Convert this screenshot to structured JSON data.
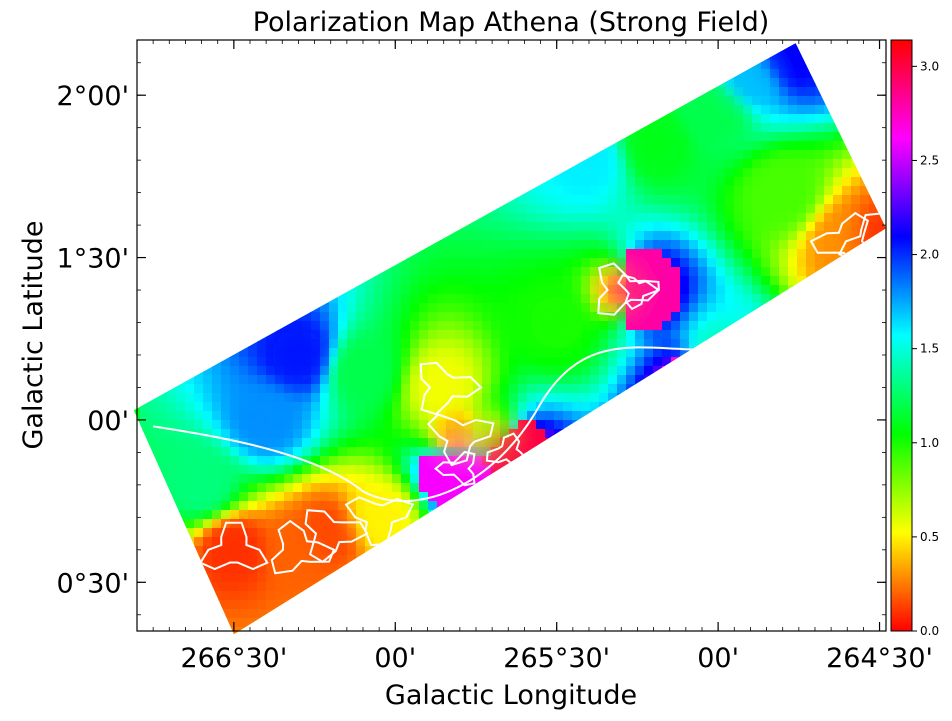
{
  "chart_data": {
    "type": "heatmap",
    "title": "Polarization Map Athena (Strong Field)",
    "xlabel": "Galactic Longitude",
    "ylabel": "Galactic Latitude",
    "x_ticks": [
      "266°30'",
      "00'",
      "265°30'",
      "00'",
      "264°30'"
    ],
    "y_ticks": [
      "2°00'",
      "1°30'",
      "00'",
      "0°30'"
    ],
    "x_tick_values_deg": [
      266.5,
      266.0,
      265.5,
      265.0,
      264.5
    ],
    "y_tick_values_deg": [
      2.0,
      1.5,
      1.0,
      0.5
    ],
    "xlim_deg": [
      266.8,
      264.48
    ],
    "ylim_deg": [
      0.35,
      2.17
    ],
    "colormap": "hsv",
    "colorbar": {
      "range": [
        0.0,
        3.14
      ],
      "ticks": [
        "0.0",
        "0.5",
        "1.0",
        "1.5",
        "2.0",
        "2.5",
        "3.0"
      ],
      "tick_values": [
        0.0,
        0.5,
        1.0,
        1.5,
        2.0,
        2.5,
        3.0
      ],
      "placement": "right"
    },
    "footprint_corners_deg": [
      {
        "lon": 266.81,
        "lat": 1.03
      },
      {
        "lon": 264.76,
        "lat": 2.16
      },
      {
        "lon": 264.48,
        "lat": 1.59
      },
      {
        "lon": 266.5,
        "lat": 0.34
      }
    ],
    "field_values": [
      {
        "lon": 266.5,
        "lat": 0.6,
        "value": 0.1
      },
      {
        "lon": 266.3,
        "lat": 0.6,
        "value": 0.2
      },
      {
        "lon": 266.2,
        "lat": 0.65,
        "value": 0.15
      },
      {
        "lon": 266.05,
        "lat": 0.7,
        "value": 0.5
      },
      {
        "lon": 266.6,
        "lat": 0.8,
        "value": 1.3
      },
      {
        "lon": 266.4,
        "lat": 1.0,
        "value": 1.8
      },
      {
        "lon": 266.3,
        "lat": 1.2,
        "value": 2.05
      },
      {
        "lon": 266.1,
        "lat": 1.15,
        "value": 1.2
      },
      {
        "lon": 265.85,
        "lat": 1.1,
        "value": 0.55
      },
      {
        "lon": 265.8,
        "lat": 0.95,
        "value": 0.35
      },
      {
        "lon": 265.7,
        "lat": 0.95,
        "value": 0.7
      },
      {
        "lon": 265.8,
        "lat": 0.85,
        "value": 2.6
      },
      {
        "lon": 265.65,
        "lat": 0.9,
        "value": 3.0
      },
      {
        "lon": 265.5,
        "lat": 1.3,
        "value": 1.0
      },
      {
        "lon": 265.3,
        "lat": 1.4,
        "value": 0.3
      },
      {
        "lon": 265.25,
        "lat": 1.4,
        "value": 2.8
      },
      {
        "lon": 265.0,
        "lat": 1.2,
        "value": 1.45
      },
      {
        "lon": 265.05,
        "lat": 1.1,
        "value": 2.7
      },
      {
        "lon": 265.4,
        "lat": 1.8,
        "value": 1.6
      },
      {
        "lon": 265.2,
        "lat": 1.85,
        "value": 1.1
      },
      {
        "lon": 265.0,
        "lat": 1.95,
        "value": 1.2
      },
      {
        "lon": 264.9,
        "lat": 2.05,
        "value": 1.7
      },
      {
        "lon": 264.78,
        "lat": 2.12,
        "value": 2.1
      },
      {
        "lon": 264.8,
        "lat": 1.7,
        "value": 0.9
      },
      {
        "lon": 264.6,
        "lat": 1.55,
        "value": 0.3
      },
      {
        "lon": 264.52,
        "lat": 1.55,
        "value": 0.1
      }
    ]
  }
}
